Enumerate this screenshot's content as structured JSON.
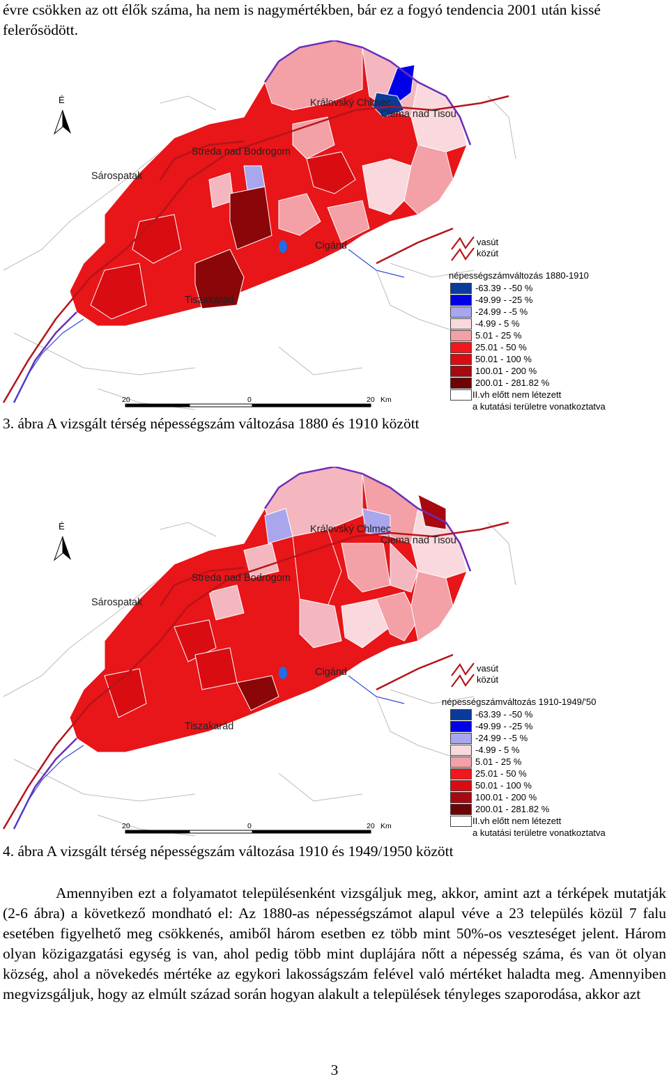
{
  "top_text": "évre csökken az ott élők száma, ha nem is nagymértékben, bár ez a fogyó tendencia 2001 után kissé felerősödött.",
  "maps": [
    {
      "north_label": "É",
      "places": {
        "kralovsky": "Královský Chlmec",
        "ciema": "Ciema nad Tisou",
        "streda": "Streda nad Bodrogom",
        "sarospatak": "Sárospatak",
        "cigand": "Cigánd",
        "tiszakarad": "Tiszakarád"
      },
      "rail_legend": {
        "rail": "vasút",
        "road": "közút"
      },
      "legend_title": "népességszámváltozás 1880-1910",
      "legend": [
        {
          "label": "-63.39 - -50 %",
          "color": "#0a3a9a"
        },
        {
          "label": "-49.99 - -25 %",
          "color": "#0000e6"
        },
        {
          "label": "-24.99 - -5 %",
          "color": "#a9a6ee"
        },
        {
          "label": "-4.99 - 5 %",
          "color": "#f9d9de"
        },
        {
          "label": "5.01 - 25 %",
          "color": "#f3a0a7"
        },
        {
          "label": "25.01 - 50 %",
          "color": "#f2171d"
        },
        {
          "label": "50.01 - 100 %",
          "color": "#d90c12"
        },
        {
          "label": "100.01 - 200 %",
          "color": "#a80810"
        },
        {
          "label": "200.01 - 281.82 %",
          "color": "#6e0306"
        },
        {
          "label": "II.vh előtt nem létezett",
          "color": "#ffffff"
        }
      ],
      "legend_note": "a kutatási területre vonatkoztatva",
      "scale": {
        "left": "20",
        "mid": "0",
        "right": "20",
        "unit": "Km"
      },
      "caption": "3. ábra  A vizsgált térség népességszám változása 1880 és 1910 között"
    },
    {
      "north_label": "É",
      "places": {
        "kralovsky": "Královský Chlmec",
        "ciema": "Ciema nad Tisou",
        "streda": "Streda nad Bodrogom",
        "sarospatak": "Sárospatak",
        "cigand": "Cigánd",
        "tiszakarad": "Tiszakarád"
      },
      "rail_legend": {
        "rail": "vasút",
        "road": "közút"
      },
      "legend_title": "népességszámváltozás 1910-1949/'50",
      "legend": [
        {
          "label": "-63.39 - -50 %",
          "color": "#0a3a9a"
        },
        {
          "label": "-49.99 - -25 %",
          "color": "#0000e6"
        },
        {
          "label": "-24.99 - -5 %",
          "color": "#a9a6ee"
        },
        {
          "label": "-4.99 - 5 %",
          "color": "#f9d9de"
        },
        {
          "label": "5.01 - 25 %",
          "color": "#f3a0a7"
        },
        {
          "label": "25.01 - 50 %",
          "color": "#f2171d"
        },
        {
          "label": "50.01 - 100 %",
          "color": "#d90c12"
        },
        {
          "label": "100.01 - 200 %",
          "color": "#a80810"
        },
        {
          "label": "200.01 - 281.82 %",
          "color": "#6e0306"
        },
        {
          "label": "II.vh előtt nem létezett",
          "color": "#ffffff"
        }
      ],
      "legend_note": "a kutatási területre vonatkoztatva",
      "scale": {
        "left": "20",
        "mid": "0",
        "right": "20",
        "unit": "Km"
      },
      "caption": "4. ábra  A vizsgált térség népességszám változása 1910 és 1949/1950 között"
    }
  ],
  "body_text": "Amennyiben ezt a folyamatot településenként vizsgáljuk meg, akkor, amint azt a térképek mutatják (2-6 ábra) a következő mondható el: Az 1880-as népességszámot alapul véve a 23 település közül 7 falu esetében figyelhető meg csökkenés, amiből három esetben ez több mint 50%-os veszteséget jelent. Három olyan közigazgatási egység is van, ahol pedig több mint duplájára nőtt a népesség száma, és van öt olyan község, ahol a növekedés mértéke az egykori lakosságszám felével való mértéket haladta meg. Amennyiben megvizsgáljuk, hogy az elmúlt század során hogyan alakult a települések tényleges szaporodása, akkor azt",
  "page_number": "3"
}
